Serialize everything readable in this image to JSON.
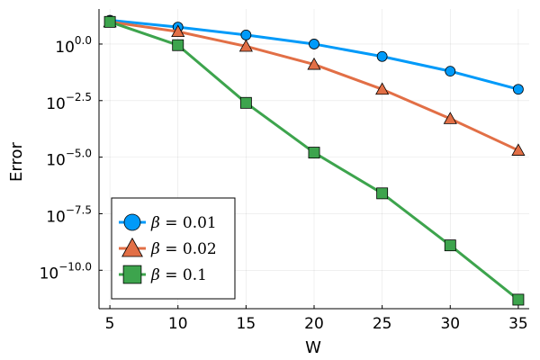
{
  "chart_data": {
    "type": "line",
    "xlabel": "W",
    "ylabel": "Error",
    "y_scale": "log10",
    "x": [
      5,
      10,
      15,
      20,
      25,
      30,
      35
    ],
    "xlim": [
      4.2,
      35.8
    ],
    "ylim_log10": [
      -11.7,
      1.55
    ],
    "x_ticks": [
      5,
      10,
      15,
      20,
      25,
      30,
      35
    ],
    "x_tick_labels": [
      "5",
      "10",
      "15",
      "20",
      "25",
      "30",
      "35"
    ],
    "y_ticks_log10": [
      0.0,
      -2.5,
      -5.0,
      -7.5,
      -10.0
    ],
    "y_tick_bases": [
      "10",
      "10",
      "10",
      "10",
      "10"
    ],
    "y_tick_exponents": [
      "0.0",
      "−2.5",
      "−5.0",
      "−7.5",
      "−10.0"
    ],
    "grid": true,
    "legend_position": "bottom-left",
    "series": [
      {
        "name": "β = 0.01",
        "symbol": "β",
        "eq": "= 0.01",
        "color": "#009af9",
        "marker": "circle",
        "values_log10": [
          1.05,
          0.75,
          0.4,
          0.0,
          -0.55,
          -1.2,
          -2.0
        ]
      },
      {
        "name": "β = 0.02",
        "symbol": "β",
        "eq": "= 0.02",
        "color": "#e26f46",
        "marker": "triangle",
        "values_log10": [
          0.98,
          0.55,
          -0.1,
          -0.9,
          -2.0,
          -3.3,
          -4.7
        ]
      },
      {
        "name": "β = 0.1",
        "symbol": "β",
        "eq": "= 0.1",
        "color": "#3da44d",
        "marker": "square",
        "values_log10": [
          0.98,
          -0.05,
          -2.6,
          -4.8,
          -6.6,
          -8.9,
          -11.3
        ]
      }
    ]
  }
}
